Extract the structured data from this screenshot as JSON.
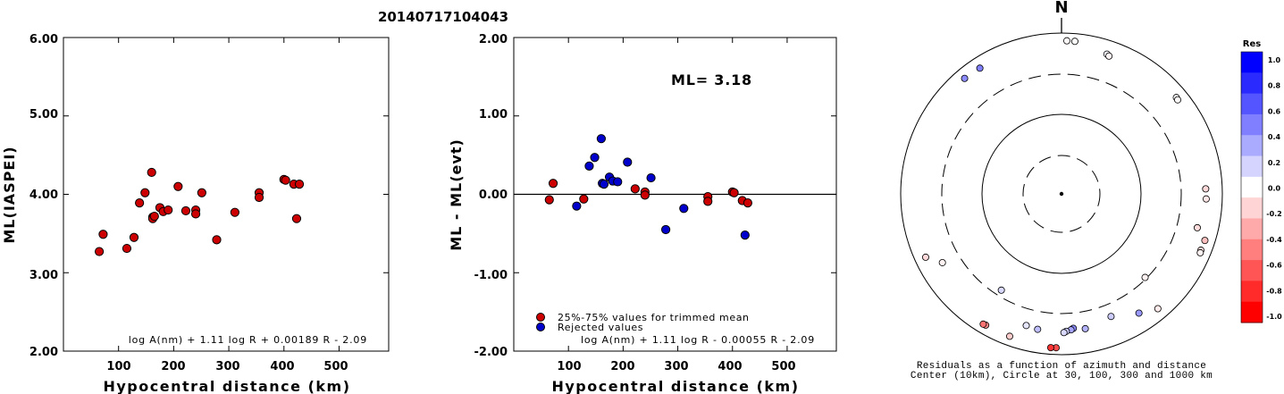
{
  "title": "20140717104043",
  "chart_data": [
    {
      "type": "scatter",
      "xlabel": "Hypocentral distance (km)",
      "ylabel": "ML(IASPEI)",
      "xlim": [
        0,
        590
      ],
      "ylim": [
        2.0,
        6.0
      ],
      "xticks": [
        "100",
        "200",
        "300",
        "400",
        "500"
      ],
      "yticks": [
        "2.00",
        "3.00",
        "4.00",
        "5.00",
        "6.00"
      ],
      "formula": "log A(nm) + 1.11 log R + 0.00189 R - 2.09",
      "series": [
        {
          "color": "#cc0000",
          "x": [
            65,
            72,
            115,
            128,
            138,
            148,
            160,
            162,
            162,
            165,
            175,
            181,
            190,
            208,
            222,
            240,
            240,
            251,
            278,
            311,
            355,
            355,
            400,
            403,
            418,
            423,
            428
          ],
          "y": [
            3.27,
            3.49,
            3.31,
            3.45,
            3.89,
            4.02,
            4.28,
            3.71,
            3.69,
            3.72,
            3.83,
            3.78,
            3.8,
            4.1,
            3.79,
            3.8,
            3.75,
            4.02,
            3.42,
            3.77,
            4.02,
            3.96,
            4.19,
            4.18,
            4.13,
            3.69,
            4.13
          ]
        }
      ]
    },
    {
      "type": "scatter",
      "xlabel": "Hypocentral distance (km)",
      "ylabel": "ML - ML(evt)",
      "xlim": [
        0,
        590
      ],
      "ylim": [
        -2.0,
        2.0
      ],
      "xticks": [
        "100",
        "200",
        "300",
        "400",
        "500"
      ],
      "yticks": [
        "-2.00",
        "-1.00",
        "0.00",
        "1.00",
        "2.00"
      ],
      "annotation": "ML= 3.18",
      "formula": "log A(nm) + 1.11 log R - 0.00055 R - 2.09",
      "legend": [
        {
          "label": "25%-75% values for trimmed mean",
          "color": "#cc0000"
        },
        {
          "label": "Rejected values",
          "color": "#0000cc"
        }
      ],
      "series": [
        {
          "name": "25%-75% values for trimmed mean",
          "color": "#cc0000",
          "x": [
            65,
            72,
            128,
            222,
            240,
            240,
            355,
            355,
            400,
            403,
            418,
            428
          ],
          "y": [
            -0.07,
            0.14,
            -0.06,
            0.07,
            0.03,
            -0.01,
            -0.03,
            -0.09,
            0.03,
            0.02,
            -0.08,
            -0.11
          ]
        },
        {
          "name": "Rejected values",
          "color": "#0000cc",
          "x": [
            115,
            138,
            148,
            160,
            162,
            165,
            175,
            181,
            190,
            208,
            251,
            278,
            311,
            423
          ],
          "y": [
            -0.15,
            0.36,
            0.47,
            0.71,
            0.14,
            0.13,
            0.22,
            0.17,
            0.16,
            0.41,
            0.21,
            -0.45,
            -0.18,
            -0.52
          ]
        }
      ]
    },
    {
      "type": "scatter",
      "north_label": "N",
      "caption_line1": "Residuals as a function of azimuth and distance",
      "caption_line2": "Center (10km), Circle at 30, 100, 300 and 1000 km",
      "colorbar": {
        "title": "Res",
        "ticks": [
          "1.0",
          "0.8",
          "0.6",
          "0.4",
          "0.2",
          "0.0",
          "-0.2",
          "-0.4",
          "-0.6",
          "-0.8",
          "-1.0"
        ],
        "colors": [
          "#0000ff",
          "#2a2aff",
          "#5555ff",
          "#7f7fff",
          "#aaaaff",
          "#d4d4ff",
          "#ffffff",
          "#ffd4d4",
          "#ffaaaa",
          "#ff7f7f",
          "#ff5555",
          "#ff2a2a",
          "#ff0000"
        ]
      },
      "points": [
        {
          "az": 2,
          "dist": 880,
          "res": -0.02
        },
        {
          "az": 5,
          "dist": 878,
          "res": -0.01
        },
        {
          "az": 18,
          "dist": 735,
          "res": 0.03
        },
        {
          "az": 19,
          "dist": 710,
          "res": -0.03
        },
        {
          "az": 50,
          "dist": 800,
          "res": 0.01
        },
        {
          "az": 51,
          "dist": 790,
          "res": -0.02
        },
        {
          "az": 88,
          "dist": 680,
          "res": -0.15
        },
        {
          "az": 92,
          "dist": 690,
          "res": -0.1
        },
        {
          "az": 104,
          "dist": 600,
          "res": -0.14
        },
        {
          "az": 108,
          "dist": 820,
          "res": -0.25
        },
        {
          "az": 112,
          "dist": 810,
          "res": -0.12
        },
        {
          "az": 113,
          "dist": 820,
          "res": -0.05
        },
        {
          "az": 135,
          "dist": 320,
          "res": -0.05
        },
        {
          "az": 147,
          "dist": 640,
          "res": 0.4
        },
        {
          "az": 140,
          "dist": 800,
          "res": -0.08
        },
        {
          "az": 158,
          "dist": 480,
          "res": 0.2
        },
        {
          "az": 170,
          "dist": 550,
          "res": 0.3
        },
        {
          "az": 175,
          "dist": 520,
          "res": 0.45
        },
        {
          "az": 176,
          "dist": 540,
          "res": 0.35
        },
        {
          "az": 178,
          "dist": 560,
          "res": 0.2
        },
        {
          "az": 179,
          "dist": 580,
          "res": 0.15
        },
        {
          "az": 182,
          "dist": 900,
          "res": -0.7
        },
        {
          "az": 184,
          "dist": 905,
          "res": -0.8
        },
        {
          "az": 190,
          "dist": 560,
          "res": 0.25
        },
        {
          "az": 195,
          "dist": 540,
          "res": 0.1
        },
        {
          "az": 200,
          "dist": 840,
          "res": -0.2
        },
        {
          "az": 210,
          "dist": 840,
          "res": -0.45
        },
        {
          "az": 211,
          "dist": 850,
          "res": -0.55
        },
        {
          "az": 212,
          "dist": 280,
          "res": 0.15
        },
        {
          "az": 240,
          "dist": 560,
          "res": -0.05
        },
        {
          "az": 245,
          "dist": 800,
          "res": -0.15
        },
        {
          "az": 320,
          "dist": 820,
          "res": 0.45
        },
        {
          "az": 327,
          "dist": 800,
          "res": 0.5
        }
      ]
    }
  ]
}
